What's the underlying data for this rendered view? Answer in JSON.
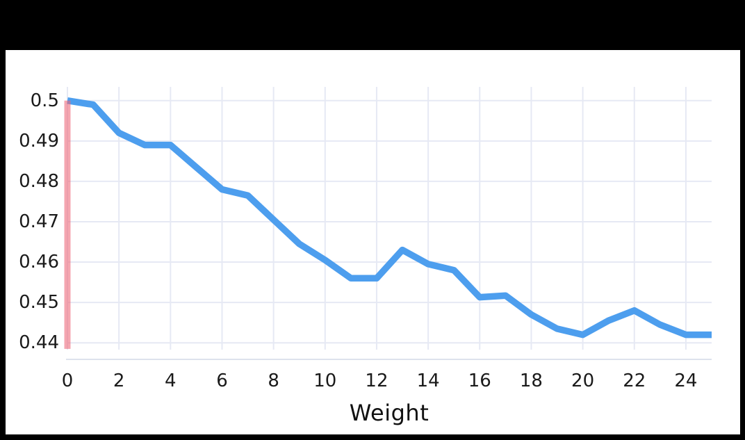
{
  "chart_data": {
    "type": "line",
    "x": [
      0,
      1,
      2,
      3,
      4,
      5,
      6,
      7,
      8,
      9,
      10,
      11,
      12,
      13,
      14,
      15,
      16,
      17,
      18,
      19,
      20,
      21,
      22,
      23,
      24,
      25
    ],
    "series": [
      {
        "name": "",
        "values": [
          0.5,
          0.499,
          0.492,
          0.489,
          0.489,
          0.4835,
          0.478,
          0.4765,
          0.4705,
          0.4645,
          0.4605,
          0.456,
          0.456,
          0.463,
          0.4595,
          0.458,
          0.4513,
          0.4517,
          0.447,
          0.4435,
          0.442,
          0.4455,
          0.448,
          0.4445,
          0.442,
          0.442
        ]
      }
    ],
    "title": "",
    "xlabel": "Weight",
    "ylabel": "",
    "xlim": [
      0,
      25
    ],
    "ylim": [
      0.4359,
      0.5034
    ],
    "x_ticks": [
      {
        "v": 0,
        "label": "0"
      },
      {
        "v": 2,
        "label": "2"
      },
      {
        "v": 4,
        "label": "4"
      },
      {
        "v": 6,
        "label": "6"
      },
      {
        "v": 8,
        "label": "8"
      },
      {
        "v": 10,
        "label": "10"
      },
      {
        "v": 12,
        "label": "12"
      },
      {
        "v": 14,
        "label": "14"
      },
      {
        "v": 16,
        "label": "16"
      },
      {
        "v": 18,
        "label": "18"
      },
      {
        "v": 20,
        "label": "20"
      },
      {
        "v": 22,
        "label": "22"
      },
      {
        "v": 24,
        "label": "24"
      }
    ],
    "y_ticks": [
      {
        "v": 0.44,
        "label": "0.44"
      },
      {
        "v": 0.45,
        "label": "0.45"
      },
      {
        "v": 0.46,
        "label": "0.46"
      },
      {
        "v": 0.47,
        "label": "0.47"
      },
      {
        "v": 0.48,
        "label": "0.48"
      },
      {
        "v": 0.49,
        "label": "0.49"
      },
      {
        "v": 0.5,
        "label": "0.5"
      }
    ],
    "grid": true,
    "legend": false,
    "highlight_band": {
      "x": 0,
      "y_top": 0.5,
      "y_bottom": 0.4385
    }
  },
  "colors": {
    "line": "#4d9eee",
    "band": "rgba(238,102,119,0.58)",
    "grid": "#e6e9f4",
    "axis": "#dde2ed",
    "tick_text": "#1a1a1a",
    "panel_bg": "#ffffff",
    "frame_bg": "#000000"
  }
}
